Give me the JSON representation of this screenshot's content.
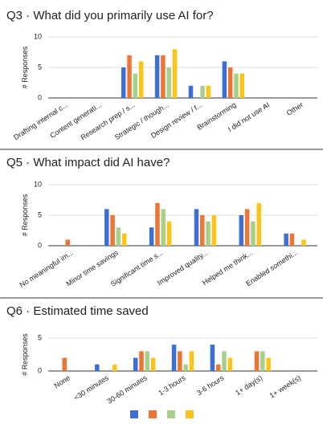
{
  "chart_data": [
    {
      "type": "bar",
      "title": "Q3 · What did you primarily use AI for?",
      "y_label": "# Responses",
      "categories": [
        "Drafting internal c...",
        "Content generati...",
        "Research prep / s...",
        "Strategic / though...",
        "Design review / f...",
        "Brainstorming",
        "I did not use AI",
        "Other"
      ],
      "series": [
        {
          "color": "#3d6fd3",
          "values": [
            0,
            0,
            5,
            7,
            2,
            6,
            0,
            0
          ]
        },
        {
          "color": "#ee7434",
          "values": [
            0,
            0,
            7,
            7,
            0,
            5,
            0,
            0
          ]
        },
        {
          "color": "#a8d08d",
          "values": [
            0,
            0,
            4,
            5,
            2,
            4,
            0,
            0
          ]
        },
        {
          "color": "#fcc419",
          "values": [
            0,
            0,
            6,
            8,
            2,
            4,
            0,
            0
          ]
        }
      ],
      "ylim": [
        0,
        10
      ],
      "yticks": [
        0,
        5,
        10
      ],
      "grid": true
    },
    {
      "type": "bar",
      "title": "Q5 · What impact did AI have?",
      "y_label": "# Responses",
      "categories": [
        "No meaningful im...",
        "Minor time savings",
        "Significant time s...",
        "Improved quality...",
        "Helped me think...",
        "Enabled somethi..."
      ],
      "series": [
        {
          "color": "#3d6fd3",
          "values": [
            0,
            6,
            3,
            6,
            5,
            2
          ]
        },
        {
          "color": "#ee7434",
          "values": [
            1,
            5,
            7,
            5,
            6,
            2
          ]
        },
        {
          "color": "#a8d08d",
          "values": [
            0,
            3,
            6,
            4,
            4,
            0
          ]
        },
        {
          "color": "#fcc419",
          "values": [
            0,
            2,
            4,
            5,
            7,
            1
          ]
        }
      ],
      "ylim": [
        0,
        10
      ],
      "yticks": [
        0,
        5,
        10
      ],
      "grid": true
    },
    {
      "type": "bar",
      "title": "Q6 · Estimated time saved",
      "y_label": "# Responses",
      "categories": [
        "None",
        "<30 minutes",
        "30-60 minutes",
        "1-3 hours",
        "3-6 hours",
        "1+ day(s)",
        "1+ week(s)"
      ],
      "series": [
        {
          "color": "#3d6fd3",
          "values": [
            0,
            1,
            2,
            4,
            4,
            0,
            0
          ]
        },
        {
          "color": "#ee7434",
          "values": [
            2,
            0,
            3,
            3,
            1,
            3,
            0
          ]
        },
        {
          "color": "#a8d08d",
          "values": [
            0,
            0,
            3,
            1,
            3,
            3,
            0
          ]
        },
        {
          "color": "#fcc419",
          "values": [
            0,
            1,
            2,
            3,
            2,
            2,
            0
          ]
        }
      ],
      "ylim": [
        0,
        5
      ],
      "yticks": [
        0,
        5
      ],
      "grid": true
    }
  ]
}
